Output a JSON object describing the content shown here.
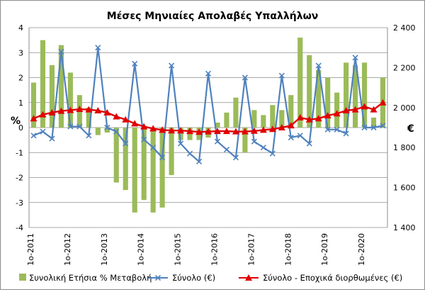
{
  "chart_data": {
    "type": "bar+line",
    "title": "Μέσες Μηνιαίες Απολαβές Υπαλλήλων",
    "y_left": {
      "label": "%",
      "min": -4,
      "max": 4,
      "ticks": [
        "4",
        "3",
        "2",
        "1",
        "0",
        "-1",
        "-2",
        "-3",
        "-4"
      ]
    },
    "y_right": {
      "label": "€",
      "min": 1400,
      "max": 2400,
      "ticks": [
        "2 400",
        "2 200",
        "2 000",
        "1 800",
        "1 600",
        "1 400"
      ]
    },
    "x_labels": [
      "1o-2011",
      "1o-2012",
      "1o-2013",
      "1o-2014",
      "1o-2015",
      "1o-2016",
      "1o-2017",
      "1o-2018",
      "1o-2019",
      "1o-2020"
    ],
    "grid": true,
    "legend_position": "bottom",
    "series": [
      {
        "name": "Συνολική Ετήσια % Μεταβολή",
        "kind": "bar",
        "axis": "left",
        "color": "#9bbb59",
        "values": [
          1.8,
          3.5,
          2.5,
          3.3,
          2.2,
          1.3,
          0.8,
          -0.3,
          -0.2,
          -2.2,
          -2.5,
          -3.4,
          -2.9,
          -3.4,
          -3.2,
          -1.9,
          -0.5,
          -0.5,
          -0.5,
          -0.4,
          0.2,
          0.6,
          1.2,
          -1.0,
          0.7,
          0.5,
          0.9,
          0.7,
          1.3,
          3.6,
          2.9,
          2.3,
          2.0,
          1.4,
          2.6,
          2.5,
          2.6,
          0.4,
          2.0
        ]
      },
      {
        "name": "Σύνολο (€)",
        "kind": "line",
        "axis": "right",
        "color": "#4f81bd",
        "marker": "x",
        "values": [
          1860,
          1880,
          1845,
          2280,
          1905,
          1905,
          1860,
          2300,
          1900,
          1880,
          1820,
          2220,
          1840,
          1800,
          1750,
          2210,
          1820,
          1770,
          1730,
          2170,
          1830,
          1790,
          1750,
          2150,
          1830,
          1800,
          1770,
          2160,
          1850,
          1860,
          1820,
          2210,
          1890,
          1890,
          1870,
          2250,
          1900,
          1900,
          1910
        ]
      },
      {
        "name": "Σύνολο - Εποχικά διορθωμένες (€)",
        "kind": "line",
        "axis": "right",
        "color": "#e00000",
        "marker": "triangle",
        "values": [
          1945,
          1965,
          1975,
          1983,
          1987,
          1992,
          1990,
          1985,
          1975,
          1955,
          1940,
          1920,
          1905,
          1895,
          1888,
          1885,
          1885,
          1882,
          1878,
          1880,
          1882,
          1882,
          1880,
          1880,
          1883,
          1888,
          1892,
          1900,
          1910,
          1950,
          1940,
          1945,
          1960,
          1970,
          1985,
          1990,
          2005,
          1990,
          2025
        ]
      }
    ]
  }
}
